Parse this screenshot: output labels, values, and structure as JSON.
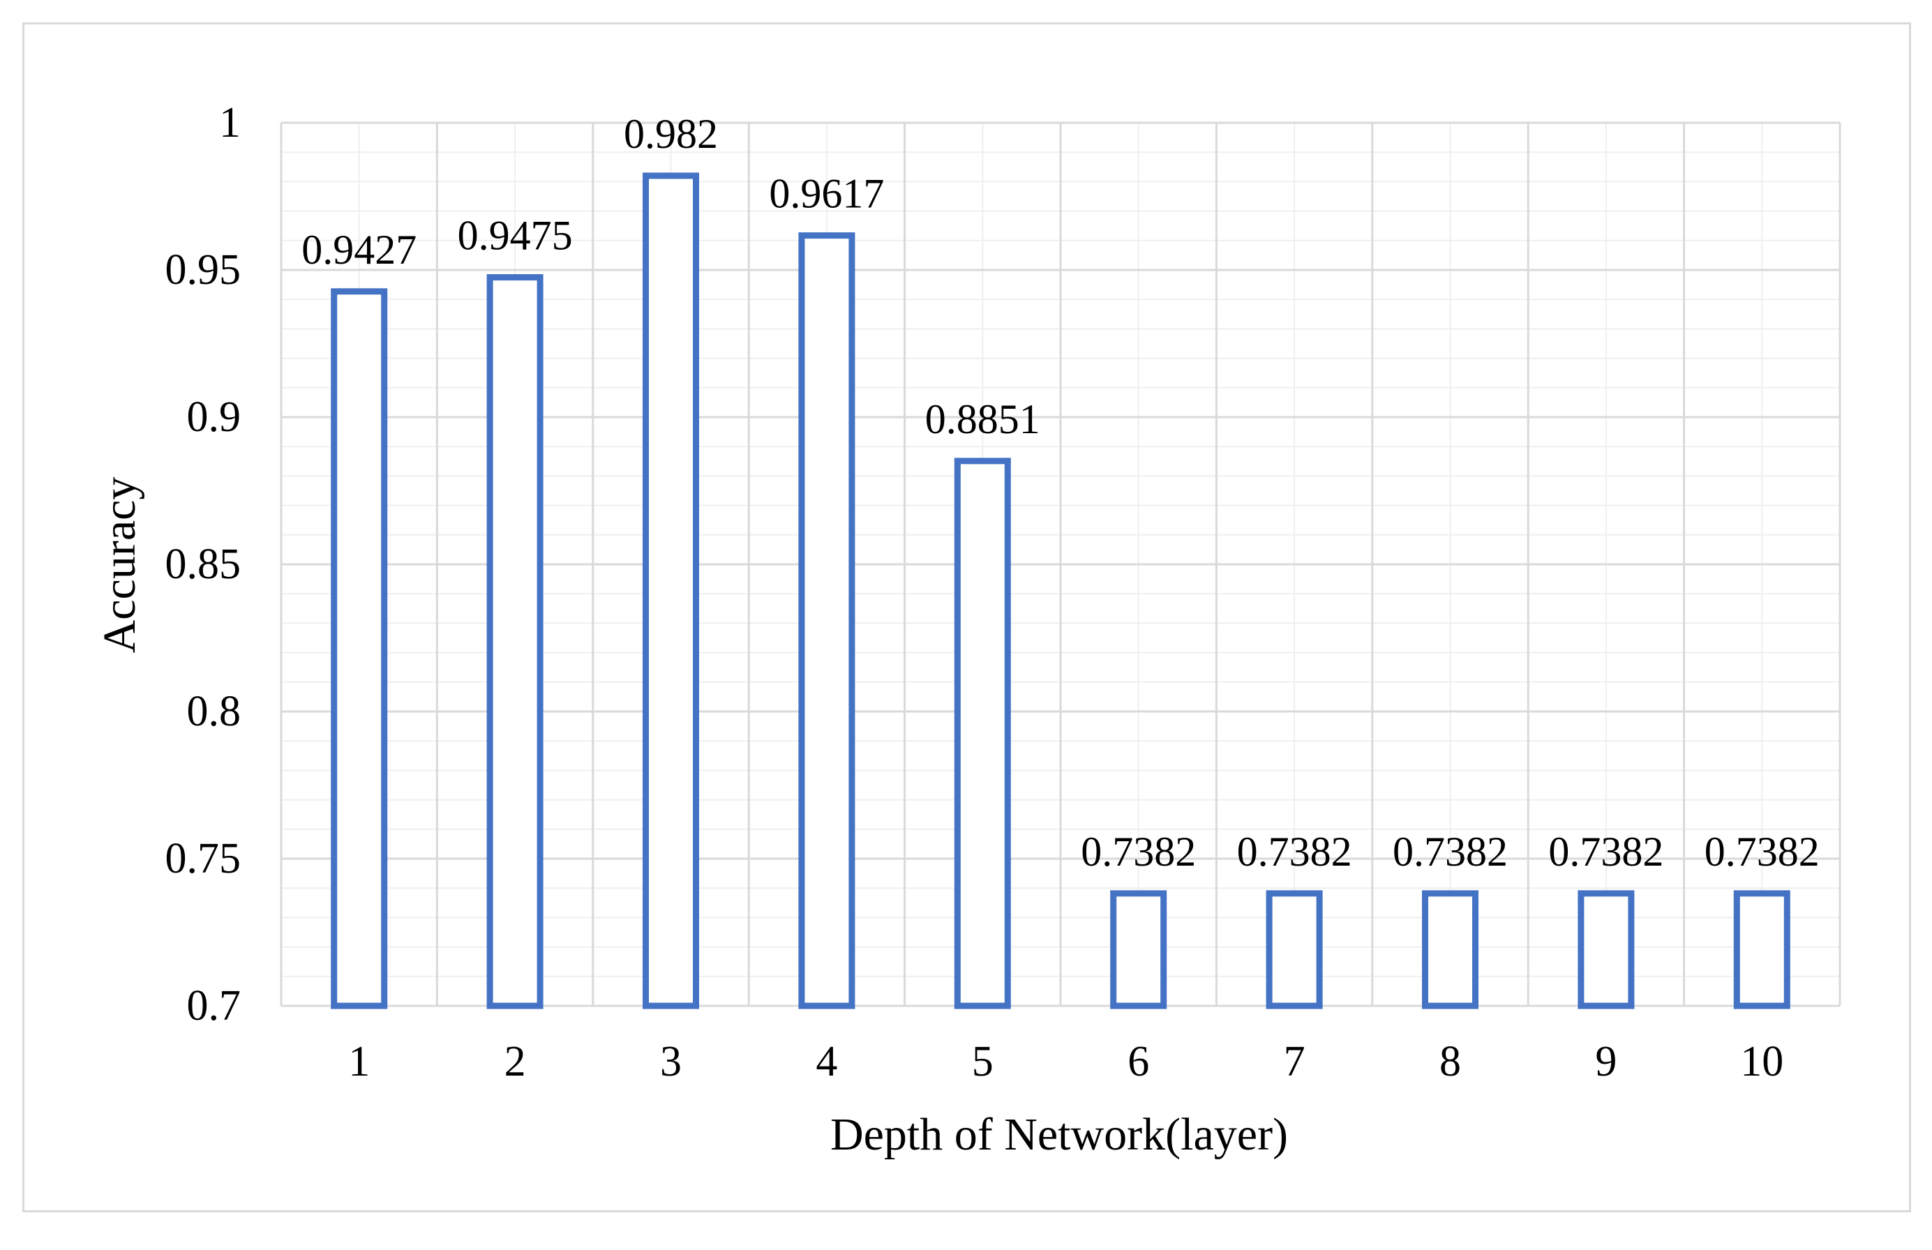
{
  "chart_data": {
    "type": "bar",
    "title": "",
    "xlabel": "Depth of Network(layer)",
    "ylabel": "Accuracy",
    "categories": [
      "1",
      "2",
      "3",
      "4",
      "5",
      "6",
      "7",
      "8",
      "9",
      "10"
    ],
    "values": [
      0.9427,
      0.9475,
      0.982,
      0.9617,
      0.8851,
      0.7382,
      0.7382,
      0.7382,
      0.7382,
      0.7382
    ],
    "data_labels": [
      "0.9427",
      "0.9475",
      "0.982",
      "0.9617",
      "0.8851",
      "0.7382",
      "0.7382",
      "0.7382",
      "0.7382",
      "0.7382"
    ],
    "ylim": [
      0.7,
      1
    ],
    "y_ticks": [
      0.7,
      0.75,
      0.8,
      0.85,
      0.9,
      0.95,
      1
    ],
    "y_tick_labels": [
      "0.7",
      "0.75",
      "0.8",
      "0.85",
      "0.9",
      "0.95",
      "1"
    ],
    "grid": true,
    "legend": "none",
    "colors": {
      "bar_outline": "#4472c4",
      "bar_fill": "#ffffff",
      "major_grid": "#d9d9d9",
      "minor_grid": "#efefef",
      "frame": "#d9d9d9"
    }
  }
}
